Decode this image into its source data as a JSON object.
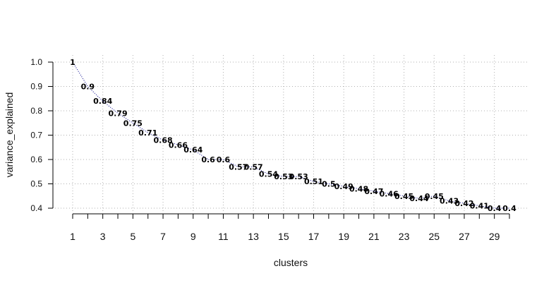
{
  "chart_data": {
    "type": "line",
    "xlabel": "clusters",
    "ylabel": "variance_explained",
    "x": [
      1,
      2,
      3,
      4,
      5,
      6,
      7,
      8,
      9,
      10,
      11,
      12,
      13,
      14,
      15,
      16,
      17,
      18,
      19,
      20,
      21,
      22,
      23,
      24,
      25,
      26,
      27,
      28,
      29,
      30
    ],
    "values": [
      1,
      0.9,
      0.84,
      0.79,
      0.75,
      0.71,
      0.68,
      0.66,
      0.64,
      0.6,
      0.6,
      0.57,
      0.57,
      0.54,
      0.53,
      0.53,
      0.51,
      0.5,
      0.49,
      0.48,
      0.47,
      0.46,
      0.45,
      0.44,
      0.45,
      0.43,
      0.42,
      0.41,
      0.4,
      0.4
    ],
    "data_labels": [
      "1",
      "0.9",
      "0.84",
      "0.79",
      "0.75",
      "0.71",
      "0.68",
      "0.66",
      "0.64",
      "0.6",
      "0.6",
      "0.57",
      "0.57",
      "0.54",
      "0.53",
      "0.53",
      "0.51",
      "0.5",
      "0.49",
      "0.48",
      "0.47",
      "0.46",
      "0.45",
      "0.44",
      "0.45",
      "0.43",
      "0.42",
      "0.41",
      "0.4",
      "0.4"
    ],
    "xticks": [
      "1",
      "3",
      "5",
      "7",
      "9",
      "11",
      "13",
      "15",
      "17",
      "19",
      "21",
      "23",
      "25",
      "27",
      "29"
    ],
    "yticks": [
      "0.4",
      "0.5",
      "0.6",
      "0.7",
      "0.8",
      "0.9",
      "1.0"
    ],
    "xlim": [
      1,
      30
    ],
    "ylim": [
      0.4,
      1.0
    ],
    "grid": true,
    "line_style": "dotted",
    "line_color": "#00008b",
    "grid_color": "#b0b0b0"
  }
}
